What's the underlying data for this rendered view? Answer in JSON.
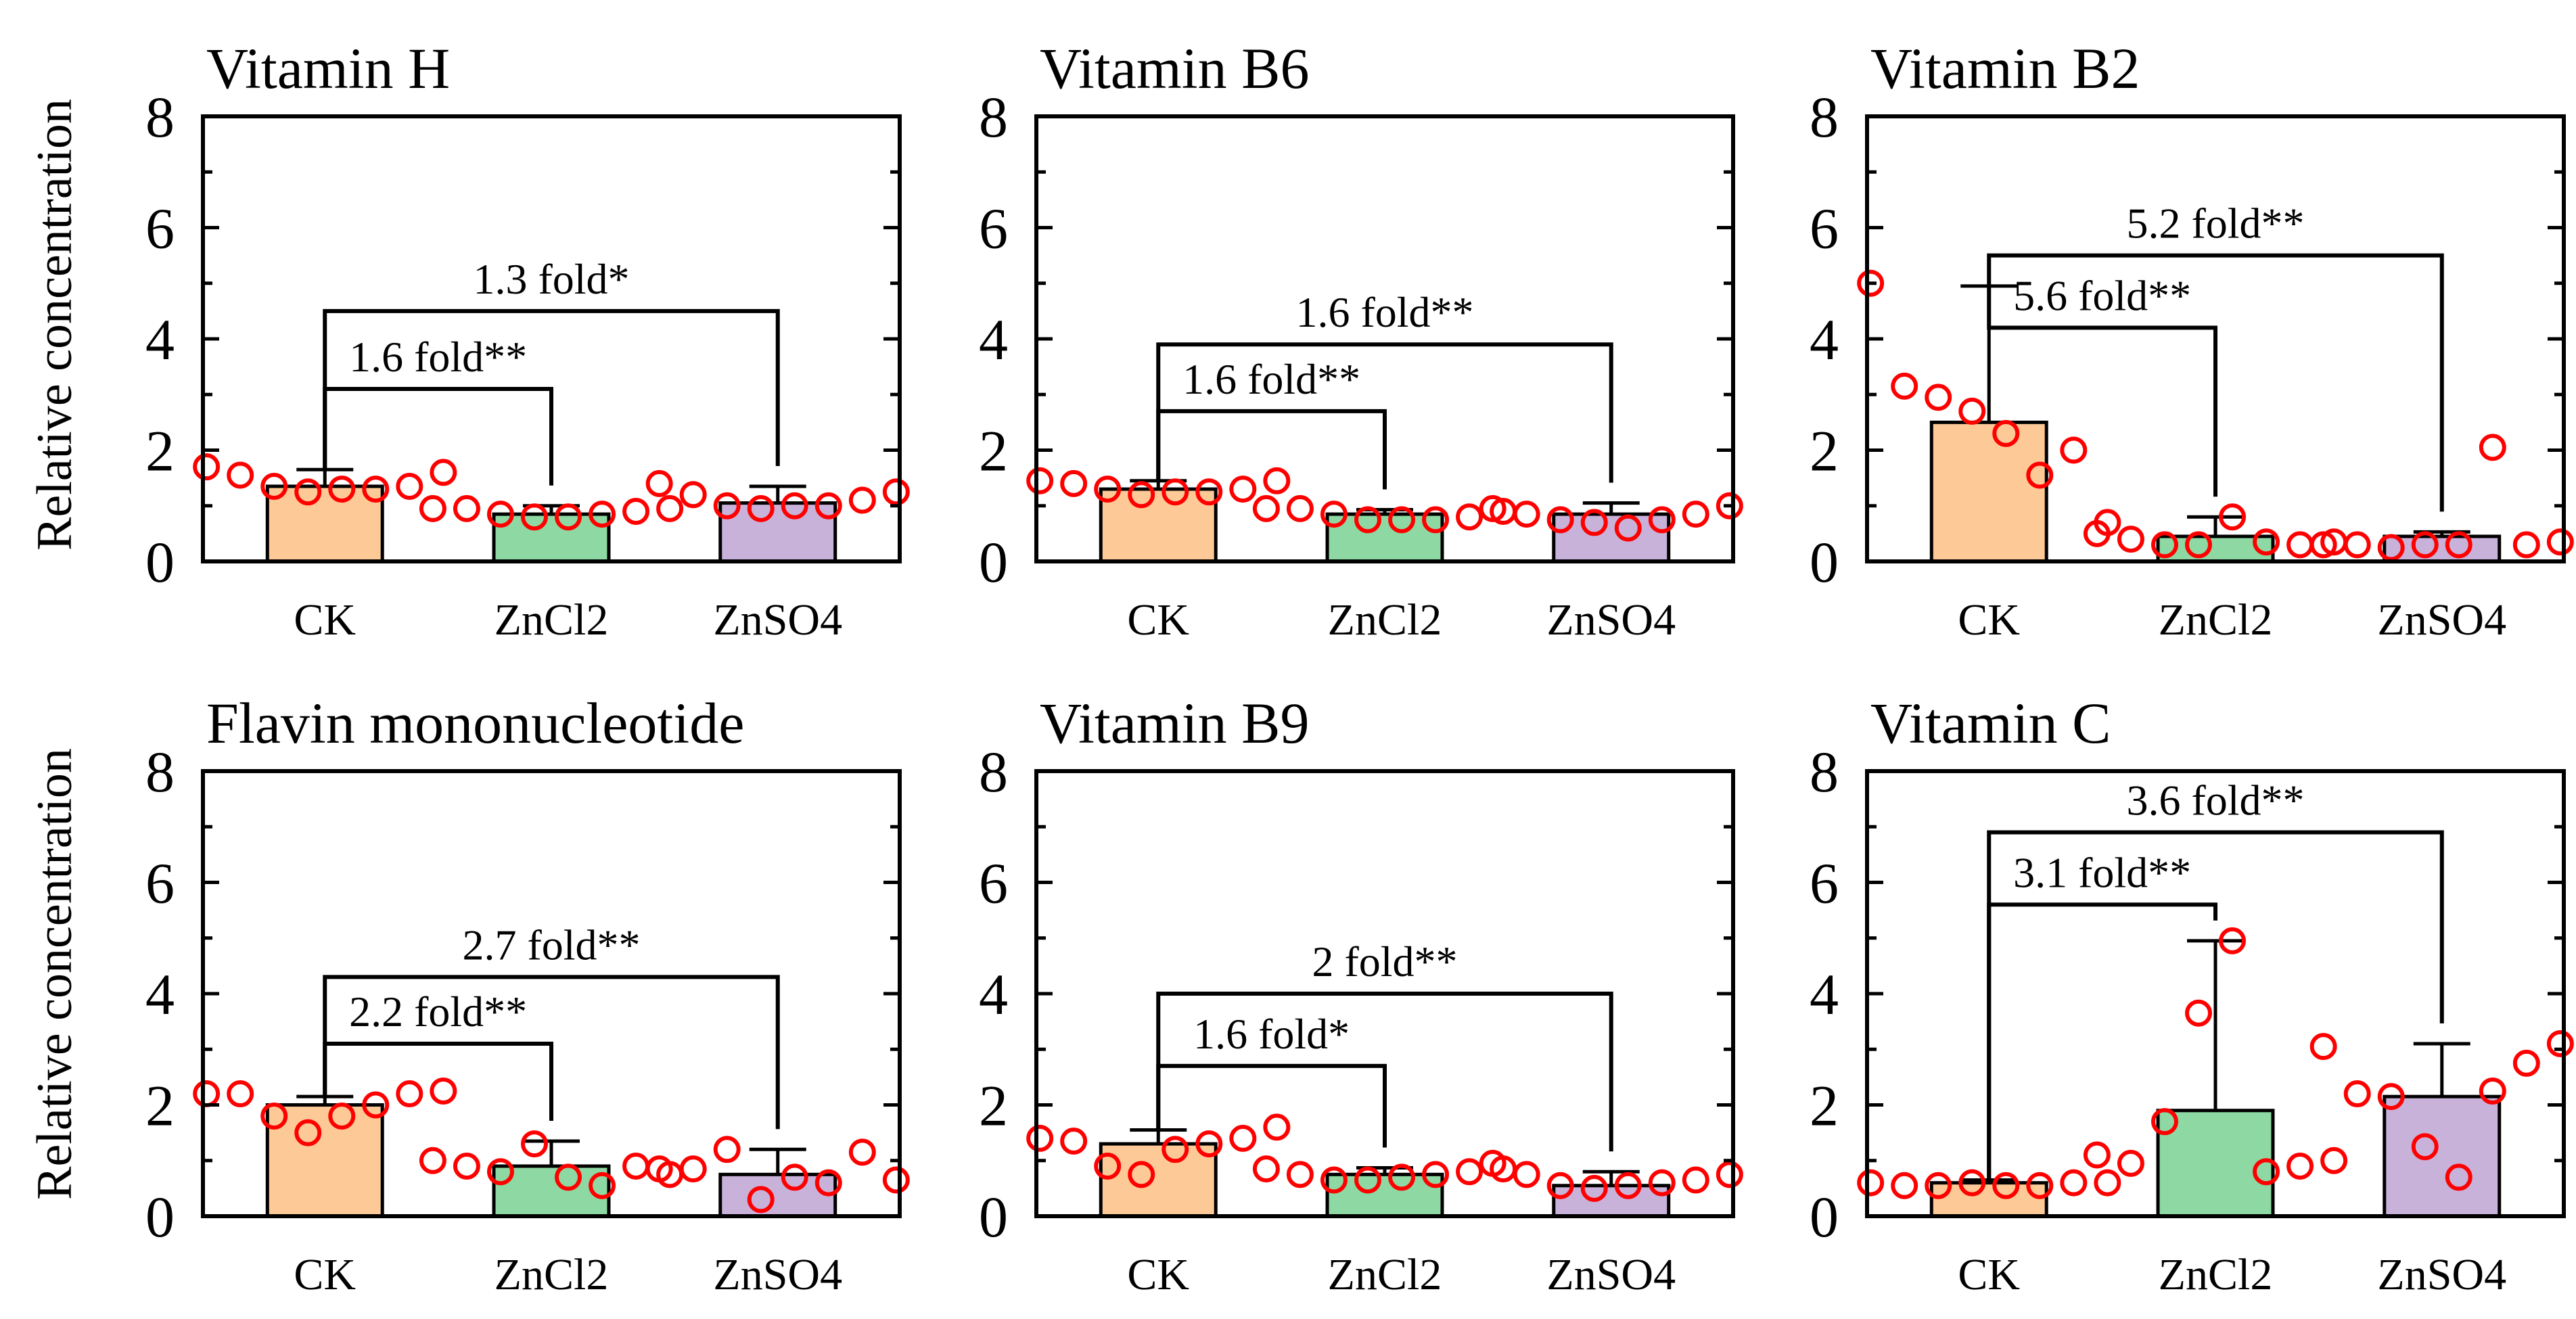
{
  "ylabel": "Relative concentration",
  "colors": {
    "CK": "#FDCA97",
    "ZnCl2": "#8ED9A3",
    "ZnSO4": "#C9B2DA",
    "points": "#FF0000",
    "axis": "#000000"
  },
  "chart_data": [
    {
      "type": "bar",
      "title": "Vitamin H",
      "categories": [
        "CK",
        "ZnCl2",
        "ZnSO4"
      ],
      "values": [
        1.35,
        0.85,
        1.05
      ],
      "errors": [
        0.3,
        0.15,
        0.3
      ],
      "points": [
        [
          1.7,
          1.55,
          1.35,
          1.25,
          1.3,
          1.3,
          1.35,
          1.6
        ],
        [
          0.95,
          0.95,
          0.85,
          0.8,
          0.8,
          0.85,
          0.9,
          0.95
        ],
        [
          1.4,
          1.2,
          1.0,
          0.95,
          1.0,
          1.0,
          1.1,
          1.25
        ]
      ],
      "ylim": [
        0,
        8
      ],
      "yticks": [
        0,
        2,
        4,
        6,
        8
      ],
      "comparisons": [
        {
          "from": 0,
          "to": 1,
          "y": 3.1,
          "label": "1.6 fold**"
        },
        {
          "from": 0,
          "to": 2,
          "y": 4.5,
          "label": "1.3 fold*"
        }
      ]
    },
    {
      "type": "bar",
      "title": "Vitamin B6",
      "categories": [
        "CK",
        "ZnCl2",
        "ZnSO4"
      ],
      "values": [
        1.3,
        0.85,
        0.85
      ],
      "errors": [
        0.15,
        0.08,
        0.2
      ],
      "points": [
        [
          1.45,
          1.4,
          1.3,
          1.2,
          1.25,
          1.25,
          1.3,
          1.45
        ],
        [
          0.95,
          0.95,
          0.85,
          0.75,
          0.75,
          0.75,
          0.8,
          0.9
        ],
        [
          0.95,
          0.85,
          0.75,
          0.7,
          0.6,
          0.75,
          0.85,
          1.0
        ]
      ],
      "ylim": [
        0,
        8
      ],
      "yticks": [
        0,
        2,
        4,
        6,
        8
      ],
      "comparisons": [
        {
          "from": 0,
          "to": 1,
          "y": 2.7,
          "label": "1.6 fold**"
        },
        {
          "from": 0,
          "to": 2,
          "y": 3.9,
          "label": "1.6 fold**"
        }
      ]
    },
    {
      "type": "bar",
      "title": "Vitamin B2",
      "categories": [
        "CK",
        "ZnCl2",
        "ZnSO4"
      ],
      "values": [
        2.5,
        0.45,
        0.45
      ],
      "errors": [
        2.45,
        0.35,
        0.08
      ],
      "points": [
        [
          5.0,
          3.15,
          2.95,
          2.7,
          2.3,
          1.55,
          2.0,
          0.7
        ],
        [
          0.5,
          0.4,
          0.3,
          0.3,
          0.8,
          0.35,
          0.3,
          0.35
        ],
        [
          0.3,
          0.3,
          0.25,
          0.3,
          0.3,
          2.05,
          0.3,
          0.35
        ]
      ],
      "ylim": [
        0,
        8
      ],
      "yticks": [
        0,
        2,
        4,
        6,
        8
      ],
      "comparisons": [
        {
          "from": 0,
          "to": 1,
          "y": 4.2,
          "label": "5.6 fold**"
        },
        {
          "from": 0,
          "to": 2,
          "y": 5.5,
          "label": "5.2 fold**"
        }
      ]
    },
    {
      "type": "bar",
      "title": "Flavin mononucleotide",
      "categories": [
        "CK",
        "ZnCl2",
        "ZnSO4"
      ],
      "values": [
        2.0,
        0.9,
        0.75
      ],
      "errors": [
        0.15,
        0.45,
        0.45
      ],
      "points": [
        [
          2.2,
          2.2,
          1.8,
          1.5,
          1.8,
          2.0,
          2.2,
          2.25
        ],
        [
          1.0,
          0.9,
          0.8,
          1.3,
          0.7,
          0.55,
          0.9,
          0.75
        ],
        [
          0.85,
          0.85,
          1.2,
          0.3,
          0.7,
          0.6,
          1.15,
          0.65
        ]
      ],
      "ylim": [
        0,
        8
      ],
      "yticks": [
        0,
        2,
        4,
        6,
        8
      ],
      "comparisons": [
        {
          "from": 0,
          "to": 1,
          "y": 3.1,
          "label": "2.2 fold**"
        },
        {
          "from": 0,
          "to": 2,
          "y": 4.3,
          "label": "2.7 fold**"
        }
      ]
    },
    {
      "type": "bar",
      "title": "Vitamin B9",
      "categories": [
        "CK",
        "ZnCl2",
        "ZnSO4"
      ],
      "values": [
        1.3,
        0.75,
        0.55
      ],
      "errors": [
        0.25,
        0.12,
        0.25
      ],
      "points": [
        [
          1.4,
          1.35,
          0.9,
          0.75,
          1.2,
          1.3,
          1.4,
          1.6
        ],
        [
          0.85,
          0.75,
          0.65,
          0.65,
          0.7,
          0.75,
          0.8,
          0.85
        ],
        [
          0.95,
          0.75,
          0.55,
          0.5,
          0.55,
          0.6,
          0.65,
          0.75
        ]
      ],
      "ylim": [
        0,
        8
      ],
      "yticks": [
        0,
        2,
        4,
        6,
        8
      ],
      "comparisons": [
        {
          "from": 0,
          "to": 1,
          "y": 2.7,
          "label": "1.6 fold*"
        },
        {
          "from": 0,
          "to": 2,
          "y": 4.0,
          "label": "2 fold**"
        }
      ]
    },
    {
      "type": "bar",
      "title": "Vitamin C",
      "categories": [
        "CK",
        "ZnCl2",
        "ZnSO4"
      ],
      "values": [
        0.6,
        1.9,
        2.15
      ],
      "errors": [
        0.05,
        3.05,
        0.95
      ],
      "points": [
        [
          0.6,
          0.55,
          0.55,
          0.6,
          0.55,
          0.55,
          0.6,
          0.6
        ],
        [
          1.1,
          0.95,
          1.7,
          3.65,
          4.95,
          0.8,
          0.9,
          1.0
        ],
        [
          3.05,
          2.2,
          2.15,
          1.25,
          0.7,
          2.25,
          2.75,
          3.1
        ]
      ],
      "ylim": [
        0,
        8
      ],
      "yticks": [
        0,
        2,
        4,
        6,
        8
      ],
      "comparisons": [
        {
          "from": 0,
          "to": 1,
          "y": 5.6,
          "label": "3.1 fold**"
        },
        {
          "from": 0,
          "to": 2,
          "y": 6.9,
          "label": "3.6 fold**"
        }
      ]
    }
  ]
}
